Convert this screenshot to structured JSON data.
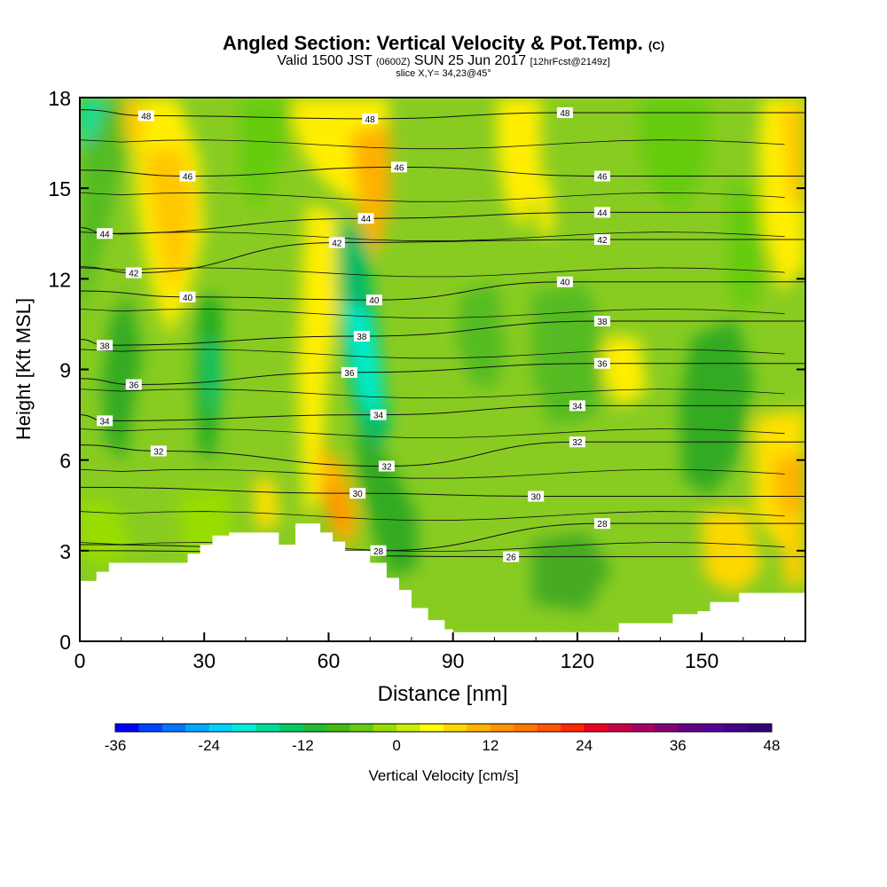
{
  "title": {
    "main": "Angled Section: Vertical Velocity & Pot.Temp.",
    "copyright": "(C)",
    "valid_prefix": "Valid 1500 JST",
    "valid_zulu": "(0600Z)",
    "valid_date": "SUN 25 Jun 2017",
    "forecast": "[12hrFcst@2149z]",
    "slice": "slice X,Y= 34,23@45°"
  },
  "chart_data": {
    "type": "heatmap",
    "xlabel": "Distance [nm]",
    "ylabel": "Height [Kft MSL]",
    "xlim": [
      0,
      175
    ],
    "ylim": [
      0,
      18
    ],
    "xticks": [
      0,
      30,
      60,
      90,
      120,
      150
    ],
    "yticks": [
      0,
      3,
      6,
      9,
      12,
      15,
      18
    ],
    "colorbar": {
      "label": "Vertical Velocity [cm/s]",
      "ticks": [
        -36,
        -24,
        -12,
        0,
        12,
        24,
        36,
        48
      ],
      "range": [
        -36,
        48
      ],
      "step": 3,
      "colors": [
        "#0000ff",
        "#0044ff",
        "#0077ff",
        "#00aaff",
        "#00d5ff",
        "#00eedd",
        "#00dd99",
        "#00cc66",
        "#22bb33",
        "#44bb11",
        "#66cc11",
        "#99dd00",
        "#ccee00",
        "#ffff00",
        "#ffd700",
        "#ffb400",
        "#ff9600",
        "#ff7800",
        "#ff5500",
        "#ff2a00",
        "#ee0022",
        "#cc0044",
        "#aa0066",
        "#880077",
        "#660088",
        "#550099",
        "#440088",
        "#330077"
      ]
    },
    "terrain": [
      [
        0,
        2
      ],
      [
        4,
        2
      ],
      [
        4,
        2.3
      ],
      [
        7,
        2.3
      ],
      [
        7,
        2.6
      ],
      [
        26,
        2.6
      ],
      [
        26,
        2.9
      ],
      [
        29,
        2.9
      ],
      [
        29,
        3.2
      ],
      [
        32,
        3.2
      ],
      [
        32,
        3.5
      ],
      [
        36,
        3.5
      ],
      [
        36,
        3.6
      ],
      [
        48,
        3.6
      ],
      [
        48,
        3.2
      ],
      [
        52,
        3.2
      ],
      [
        52,
        3.9
      ],
      [
        58,
        3.9
      ],
      [
        58,
        3.6
      ],
      [
        61,
        3.6
      ],
      [
        61,
        3.3
      ],
      [
        64,
        3.3
      ],
      [
        64,
        3.0
      ],
      [
        70,
        3.0
      ],
      [
        70,
        2.6
      ],
      [
        74,
        2.6
      ],
      [
        74,
        2.1
      ],
      [
        77,
        2.1
      ],
      [
        77,
        1.7
      ],
      [
        80,
        1.7
      ],
      [
        80,
        1.1
      ],
      [
        84,
        1.1
      ],
      [
        84,
        0.7
      ],
      [
        88,
        0.7
      ],
      [
        88,
        0.4
      ],
      [
        90,
        0.4
      ],
      [
        90,
        0.3
      ],
      [
        130,
        0.3
      ],
      [
        130,
        0.6
      ],
      [
        143,
        0.6
      ],
      [
        143,
        0.9
      ],
      [
        149,
        0.9
      ],
      [
        149,
        1.0
      ],
      [
        152,
        1.0
      ],
      [
        152,
        1.3
      ],
      [
        159,
        1.3
      ],
      [
        159,
        1.6
      ],
      [
        175,
        1.6
      ]
    ],
    "contour_labels": [
      {
        "x": 16,
        "y": 17.4,
        "text": "48"
      },
      {
        "x": 70,
        "y": 17.3,
        "text": "48"
      },
      {
        "x": 117,
        "y": 17.5,
        "text": "48"
      },
      {
        "x": 26,
        "y": 15.4,
        "text": "46"
      },
      {
        "x": 77,
        "y": 15.7,
        "text": "46"
      },
      {
        "x": 126,
        "y": 15.4,
        "text": "46"
      },
      {
        "x": 69,
        "y": 14.0,
        "text": "44"
      },
      {
        "x": 6,
        "y": 13.5,
        "text": "44"
      },
      {
        "x": 126,
        "y": 14.2,
        "text": "44"
      },
      {
        "x": 62,
        "y": 13.2,
        "text": "42"
      },
      {
        "x": 13,
        "y": 12.2,
        "text": "42"
      },
      {
        "x": 126,
        "y": 13.3,
        "text": "42"
      },
      {
        "x": 26,
        "y": 11.4,
        "text": "40"
      },
      {
        "x": 71,
        "y": 11.3,
        "text": "40"
      },
      {
        "x": 117,
        "y": 11.9,
        "text": "40"
      },
      {
        "x": 6,
        "y": 9.8,
        "text": "38"
      },
      {
        "x": 68,
        "y": 10.1,
        "text": "38"
      },
      {
        "x": 126,
        "y": 10.6,
        "text": "38"
      },
      {
        "x": 13,
        "y": 8.5,
        "text": "36"
      },
      {
        "x": 65,
        "y": 8.9,
        "text": "36"
      },
      {
        "x": 126,
        "y": 9.2,
        "text": "36"
      },
      {
        "x": 6,
        "y": 7.3,
        "text": "34"
      },
      {
        "x": 72,
        "y": 7.5,
        "text": "34"
      },
      {
        "x": 120,
        "y": 7.8,
        "text": "34"
      },
      {
        "x": 19,
        "y": 6.3,
        "text": "32"
      },
      {
        "x": 74,
        "y": 5.8,
        "text": "32"
      },
      {
        "x": 120,
        "y": 6.6,
        "text": "32"
      },
      {
        "x": 67,
        "y": 4.9,
        "text": "30"
      },
      {
        "x": 110,
        "y": 4.8,
        "text": "30"
      },
      {
        "x": 126,
        "y": 3.9,
        "text": "28"
      },
      {
        "x": 72,
        "y": 3.0,
        "text": "28"
      },
      {
        "x": 104,
        "y": 2.8,
        "text": "26"
      }
    ]
  }
}
